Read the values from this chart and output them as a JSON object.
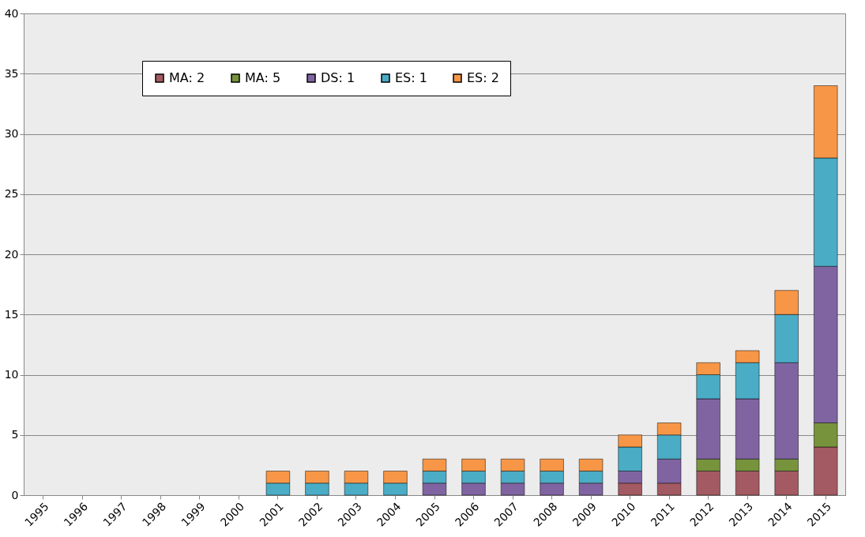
{
  "chart_data": {
    "type": "bar",
    "stacked": true,
    "categories": [
      "1995",
      "1996",
      "1997",
      "1998",
      "1999",
      "2000",
      "2001",
      "2002",
      "2003",
      "2004",
      "2005",
      "2006",
      "2007",
      "2008",
      "2009",
      "2010",
      "2011",
      "2012",
      "2013",
      "2014",
      "2015"
    ],
    "series": [
      {
        "name": "MA: 2",
        "color": "#a45a62",
        "values": [
          null,
          null,
          null,
          null,
          null,
          null,
          null,
          null,
          null,
          null,
          null,
          null,
          null,
          null,
          null,
          1,
          1,
          2,
          2,
          2,
          4
        ]
      },
      {
        "name": "MA: 5",
        "color": "#77933c",
        "values": [
          null,
          null,
          null,
          null,
          null,
          null,
          null,
          null,
          null,
          null,
          null,
          null,
          null,
          null,
          null,
          null,
          null,
          1,
          1,
          1,
          2
        ]
      },
      {
        "name": "DS: 1",
        "color": "#8064a2",
        "values": [
          null,
          null,
          null,
          null,
          null,
          null,
          null,
          null,
          null,
          null,
          1,
          1,
          1,
          1,
          1,
          1,
          2,
          5,
          5,
          8,
          13
        ]
      },
      {
        "name": "ES: 1",
        "color": "#4bacc6",
        "values": [
          null,
          null,
          null,
          null,
          null,
          null,
          1,
          1,
          1,
          1,
          1,
          1,
          1,
          1,
          1,
          2,
          2,
          2,
          3,
          4,
          9
        ]
      },
      {
        "name": "ES: 2",
        "color": "#f79646",
        "values": [
          null,
          null,
          null,
          null,
          null,
          null,
          1,
          1,
          1,
          1,
          1,
          1,
          1,
          1,
          1,
          1,
          1,
          1,
          1,
          2,
          6
        ]
      }
    ],
    "ylim": [
      0,
      40
    ],
    "yticks": [
      0,
      5,
      10,
      15,
      20,
      25,
      30,
      35,
      40
    ],
    "grid": "y",
    "legend": "top left"
  }
}
